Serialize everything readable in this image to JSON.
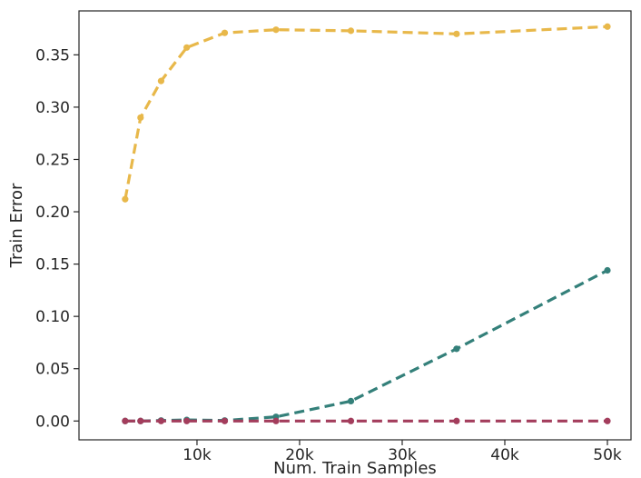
{
  "chart_data": {
    "type": "line",
    "title": "",
    "xlabel": "Num. Train Samples",
    "ylabel": "Train Error",
    "xlim": [
      -1500,
      52300
    ],
    "ylim": [
      -0.018,
      0.392
    ],
    "x_ticks": [
      10000,
      20000,
      30000,
      40000,
      50000
    ],
    "x_tick_labels": [
      "10k",
      "20k",
      "30k",
      "40k",
      "50k"
    ],
    "y_ticks": [
      0.0,
      0.05,
      0.1,
      0.15,
      0.2,
      0.25,
      0.3,
      0.35
    ],
    "y_tick_labels": [
      "0.00",
      "0.05",
      "0.10",
      "0.15",
      "0.20",
      "0.25",
      "0.30",
      "0.35"
    ],
    "grid": false,
    "line_style": "dashed",
    "markers": "circle",
    "series": [
      {
        "color": "#e8b84a",
        "x": [
          3000,
          4500,
          6500,
          9000,
          12700,
          17700,
          25000,
          35300,
          50000
        ],
        "values": [
          0.212,
          0.29,
          0.325,
          0.357,
          0.371,
          0.374,
          0.373,
          0.37,
          0.377
        ]
      },
      {
        "color": "#34807a",
        "x": [
          3000,
          4500,
          6500,
          9000,
          12700,
          17700,
          25000,
          35300,
          50000
        ],
        "values": [
          0.0,
          0.0,
          0.0005,
          0.001,
          0.0005,
          0.004,
          0.019,
          0.069,
          0.144
        ]
      },
      {
        "color": "#a33d5c",
        "x": [
          3000,
          4500,
          6500,
          9000,
          12700,
          17700,
          25000,
          35300,
          50000
        ],
        "values": [
          0.0,
          0.0,
          0.0,
          0.0,
          0.0,
          0.0,
          0.0,
          0.0,
          0.0
        ]
      }
    ]
  }
}
